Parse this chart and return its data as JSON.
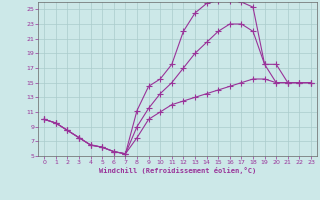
{
  "xlabel": "Windchill (Refroidissement éolien,°C)",
  "bg_color": "#cce8e8",
  "grid_color": "#aacccc",
  "line_color": "#993399",
  "xlim": [
    -0.5,
    23.5
  ],
  "ylim": [
    5,
    26
  ],
  "xticks": [
    0,
    1,
    2,
    3,
    4,
    5,
    6,
    7,
    8,
    9,
    10,
    11,
    12,
    13,
    14,
    15,
    16,
    17,
    18,
    19,
    20,
    21,
    22,
    23
  ],
  "yticks": [
    5,
    7,
    9,
    11,
    13,
    15,
    17,
    19,
    21,
    23,
    25
  ],
  "curve1_x": [
    0,
    1,
    2,
    3,
    4,
    5,
    6,
    7,
    8,
    9,
    10,
    11,
    12,
    13,
    14,
    15,
    16,
    17,
    18,
    19,
    20,
    21,
    22,
    23
  ],
  "curve1_y": [
    10,
    9.5,
    8.5,
    7.5,
    6.5,
    6.2,
    5.6,
    5.3,
    11.2,
    14.5,
    15.5,
    17.5,
    22.0,
    24.5,
    25.8,
    26.2,
    26.2,
    26.0,
    25.3,
    17.5,
    15.0,
    15.0,
    15.0,
    15.0
  ],
  "curve2_x": [
    0,
    1,
    2,
    3,
    4,
    5,
    6,
    7,
    8,
    9,
    10,
    11,
    12,
    13,
    14,
    15,
    16,
    17,
    18,
    19,
    20,
    21,
    22,
    23
  ],
  "curve2_y": [
    10,
    9.5,
    8.5,
    7.5,
    6.5,
    6.2,
    5.6,
    5.3,
    9.0,
    11.5,
    13.5,
    15.0,
    17.0,
    19.0,
    20.5,
    22.0,
    23.0,
    23.0,
    22.0,
    17.5,
    17.5,
    15.0,
    15.0,
    15.0
  ],
  "curve3_x": [
    0,
    1,
    2,
    3,
    4,
    5,
    6,
    7,
    8,
    9,
    10,
    11,
    12,
    13,
    14,
    15,
    16,
    17,
    18,
    19,
    20,
    21,
    22,
    23
  ],
  "curve3_y": [
    10,
    9.5,
    8.5,
    7.5,
    6.5,
    6.2,
    5.6,
    5.3,
    7.5,
    10.0,
    11.0,
    12.0,
    12.5,
    13.0,
    13.5,
    14.0,
    14.5,
    15.0,
    15.5,
    15.5,
    15.0,
    15.0,
    15.0,
    15.0
  ]
}
